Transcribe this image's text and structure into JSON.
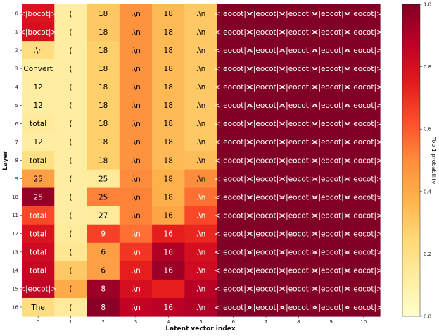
{
  "chart_data": {
    "type": "heatmap",
    "title": "",
    "xlabel": "Latent vector index",
    "ylabel": "Layer",
    "colorbar_label": "Top 1 probability",
    "colorbar_range": [
      0.0,
      1.0
    ],
    "colorbar_ticks": [
      "0.0",
      "0.2",
      "0.4",
      "0.6",
      "0.8",
      "1.0"
    ],
    "colormap": "YlOrRd",
    "x_ticks": [
      "0",
      "1",
      "2",
      "3",
      "4",
      "5",
      "6",
      "7",
      "8",
      "9",
      "10"
    ],
    "y_ticks": [
      "0",
      "1",
      "2",
      "3",
      "4",
      "5",
      "6",
      "7",
      "8",
      "9",
      "10",
      "11",
      "12",
      "13",
      "14",
      "15",
      "16"
    ],
    "tokens": [
      [
        "<|bocot|>",
        "(",
        "18",
        ".\\n",
        "18",
        ".\\n",
        "<|eocot|>",
        "<|eocot|>",
        "<|eocot|>",
        "<|eocot|>",
        "<|eocot|>"
      ],
      [
        "<|bocot|>",
        "(",
        "18",
        ".\\n",
        "18",
        ".\\n",
        "<|eocot|>",
        "<|eocot|>",
        "<|eocot|>",
        "<|eocot|>",
        "<|eocot|>"
      ],
      [
        ".\\n",
        "(",
        "18",
        ".\\n",
        "18",
        ".\\n",
        "<|eocot|>",
        "<|eocot|>",
        "<|eocot|>",
        "<|eocot|>",
        "<|eocot|>"
      ],
      [
        "Convert",
        "(",
        "18",
        ".\\n",
        "18",
        ".\\n",
        "<|eocot|>",
        "<|eocot|>",
        "<|eocot|>",
        "<|eocot|>",
        "<|eocot|>"
      ],
      [
        "12",
        "(",
        "18",
        ".\\n",
        "18",
        ".\\n",
        "<|eocot|>",
        "<|eocot|>",
        "<|eocot|>",
        "<|eocot|>",
        "<|eocot|>"
      ],
      [
        "12",
        "(",
        "18",
        ".\\n",
        "18",
        ".\\n",
        "<|eocot|>",
        "<|eocot|>",
        "<|eocot|>",
        "<|eocot|>",
        "<|eocot|>"
      ],
      [
        "total",
        "(",
        "18",
        ".\\n",
        "18",
        ".\\n",
        "<|eocot|>",
        "<|eocot|>",
        "<|eocot|>",
        "<|eocot|>",
        "<|eocot|>"
      ],
      [
        "12",
        "(",
        "18",
        ".\\n",
        "18",
        ".\\n",
        "<|eocot|>",
        "<|eocot|>",
        "<|eocot|>",
        "<|eocot|>",
        "<|eocot|>"
      ],
      [
        "total",
        "(",
        "18",
        ".\\n",
        "18",
        ".\\n",
        "<|eocot|>",
        "<|eocot|>",
        "<|eocot|>",
        "<|eocot|>",
        "<|eocot|>"
      ],
      [
        "25",
        "(",
        "25",
        ".\\n",
        "18",
        ".\\n",
        "<|eocot|>",
        "<|eocot|>",
        "<|eocot|>",
        "<|eocot|>",
        "<|eocot|>"
      ],
      [
        "25",
        "(",
        "25",
        ".\\n",
        "18",
        ".\\n",
        "<|eocot|>",
        "<|eocot|>",
        "<|eocot|>",
        "<|eocot|>",
        "<|eocot|>"
      ],
      [
        "total",
        "(",
        "27",
        ".\\n",
        "16",
        ".\\n",
        "<|eocot|>",
        "<|eocot|>",
        "<|eocot|>",
        "<|eocot|>",
        "<|eocot|>"
      ],
      [
        "total",
        "(",
        "9",
        ".\\n",
        "16",
        ".\\n",
        "<|eocot|>",
        "<|eocot|>",
        "<|eocot|>",
        "<|eocot|>",
        "<|eocot|>"
      ],
      [
        "total",
        "(",
        "6",
        ".\\n",
        "16",
        ".\\n",
        "<|eocot|>",
        "<|eocot|>",
        "<|eocot|>",
        "<|eocot|>",
        "<|eocot|>"
      ],
      [
        "total",
        "(",
        "6",
        ".\\n",
        "16",
        ".\\n",
        "<|eocot|>",
        "<|eocot|>",
        "<|eocot|>",
        "<|eocot|>",
        "<|eocot|>"
      ],
      [
        "<|eocot|>",
        "(",
        "8",
        ".\\n",
        "",
        ".\\n",
        "<|eocot|>",
        "<|eocot|>",
        "<|eocot|>",
        "<|eocot|>",
        "<|eocot|>"
      ],
      [
        "The",
        "(",
        "8",
        ".\\n",
        "16",
        ".\\n",
        "<|eocot|>",
        "<|eocot|>",
        "<|eocot|>",
        "<|eocot|>",
        "<|eocot|>"
      ]
    ],
    "probabilities": [
      [
        0.78,
        0.12,
        0.3,
        0.48,
        0.35,
        0.3,
        1.0,
        1.0,
        1.0,
        1.0,
        1.0
      ],
      [
        0.8,
        0.12,
        0.3,
        0.48,
        0.35,
        0.3,
        1.0,
        1.0,
        1.0,
        1.0,
        1.0
      ],
      [
        0.22,
        0.12,
        0.28,
        0.48,
        0.35,
        0.3,
        1.0,
        1.0,
        1.0,
        1.0,
        1.0
      ],
      [
        0.12,
        0.12,
        0.28,
        0.48,
        0.35,
        0.3,
        1.0,
        1.0,
        1.0,
        1.0,
        1.0
      ],
      [
        0.12,
        0.12,
        0.28,
        0.48,
        0.35,
        0.3,
        1.0,
        1.0,
        1.0,
        1.0,
        1.0
      ],
      [
        0.12,
        0.12,
        0.28,
        0.48,
        0.35,
        0.3,
        1.0,
        1.0,
        1.0,
        1.0,
        1.0
      ],
      [
        0.14,
        0.12,
        0.28,
        0.48,
        0.35,
        0.3,
        1.0,
        1.0,
        1.0,
        1.0,
        1.0
      ],
      [
        0.12,
        0.12,
        0.28,
        0.48,
        0.35,
        0.3,
        1.0,
        1.0,
        1.0,
        1.0,
        1.0
      ],
      [
        0.2,
        0.12,
        0.28,
        0.48,
        0.35,
        0.34,
        1.0,
        1.0,
        1.0,
        1.0,
        1.0
      ],
      [
        0.44,
        0.12,
        0.14,
        0.5,
        0.38,
        0.5,
        1.0,
        1.0,
        1.0,
        1.0,
        1.0
      ],
      [
        0.96,
        0.12,
        0.52,
        0.52,
        0.38,
        0.56,
        1.0,
        1.0,
        1.0,
        1.0,
        1.0
      ],
      [
        0.64,
        0.12,
        0.14,
        0.52,
        0.42,
        0.64,
        1.0,
        1.0,
        1.0,
        1.0,
        1.0
      ],
      [
        0.78,
        0.14,
        0.66,
        0.56,
        0.74,
        0.72,
        1.0,
        1.0,
        1.0,
        1.0,
        1.0
      ],
      [
        0.82,
        0.16,
        0.44,
        0.68,
        0.9,
        0.8,
        1.0,
        1.0,
        1.0,
        1.0,
        1.0
      ],
      [
        0.84,
        0.3,
        0.44,
        0.74,
        0.94,
        0.82,
        1.0,
        1.0,
        1.0,
        1.0,
        1.0
      ],
      [
        0.86,
        0.4,
        0.94,
        0.8,
        0.74,
        0.88,
        1.0,
        1.0,
        1.0,
        1.0,
        1.0
      ],
      [
        0.22,
        0.14,
        0.98,
        0.86,
        0.88,
        0.9,
        1.0,
        1.0,
        1.0,
        1.0,
        1.0
      ]
    ]
  }
}
